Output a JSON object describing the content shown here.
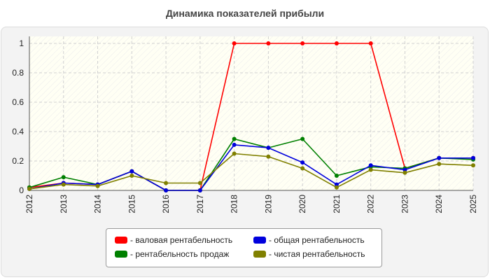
{
  "colors": {
    "gross": "#ff0000",
    "general": "#0000dd",
    "sales": "#008000",
    "net": "#808000",
    "plot_bg": "#fffff4",
    "grid": "#d0d0d0"
  },
  "chart_data": {
    "type": "line",
    "title": "Динамика показателей прибыли",
    "xlabel": "",
    "ylabel": "",
    "x": [
      "2012",
      "2013",
      "2014",
      "2015",
      "2016",
      "2017",
      "2018",
      "2019",
      "2020",
      "2021",
      "2022",
      "2023",
      "2024",
      "2025"
    ],
    "ylim": [
      0,
      1
    ],
    "yticks": [
      "0",
      "0.2",
      "0.4",
      "0.6",
      "0.8",
      "1"
    ],
    "grid": true,
    "legend_position": "bottom",
    "series": [
      {
        "name": "- валовая рентабельность",
        "color_key": "gross",
        "values": [
          0.02,
          0.05,
          0.04,
          0.13,
          0.0,
          0.0,
          1.0,
          1.0,
          1.0,
          1.0,
          1.0,
          0.15,
          0.22,
          0.22
        ]
      },
      {
        "name": "- рентабельность продаж",
        "color_key": "sales",
        "values": [
          0.02,
          0.09,
          0.04,
          0.13,
          0.0,
          0.0,
          0.35,
          0.29,
          0.35,
          0.1,
          0.16,
          0.15,
          0.22,
          0.21
        ]
      },
      {
        "name": "- общая рентабельность",
        "color_key": "general",
        "values": [
          0.01,
          0.05,
          0.04,
          0.13,
          0.0,
          0.0,
          0.31,
          0.29,
          0.19,
          0.04,
          0.17,
          0.14,
          0.22,
          0.22
        ]
      },
      {
        "name": "- чистая рентабельность",
        "color_key": "net",
        "values": [
          0.01,
          0.04,
          0.03,
          0.1,
          0.05,
          0.05,
          0.25,
          0.23,
          0.15,
          0.02,
          0.14,
          0.12,
          0.18,
          0.17
        ]
      }
    ]
  },
  "legend": {
    "gross_label": "- валовая рентабельность",
    "general_label": "- общая рентабельность",
    "sales_label": "- рентабельность продаж",
    "net_label": "- чистая рентабельность"
  }
}
